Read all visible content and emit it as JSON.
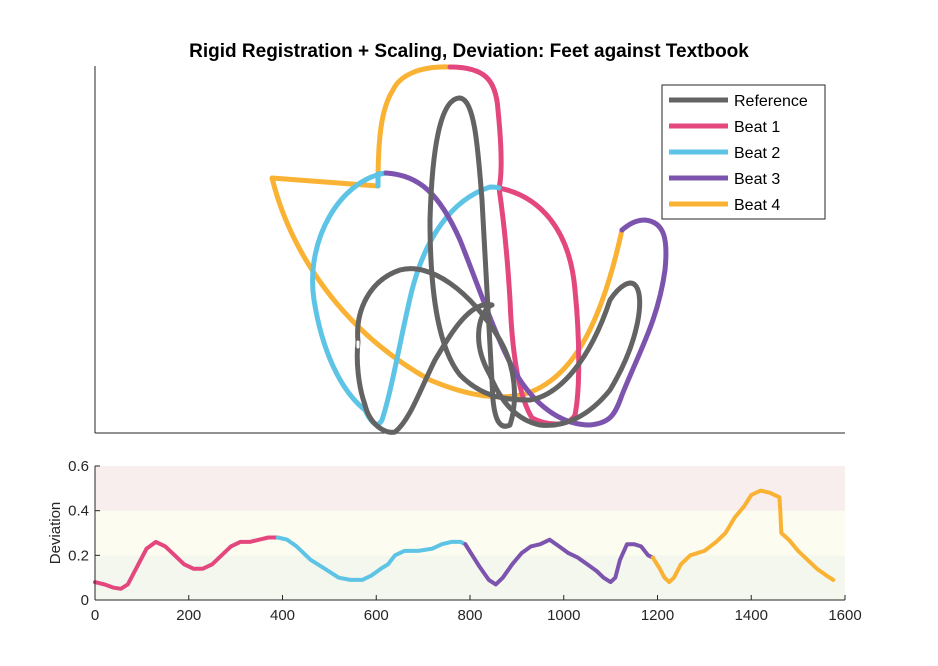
{
  "chart_data": [
    {
      "type": "line",
      "title": "Rigid Registration + Scaling, Deviation: Feet against Textbook",
      "legend_position": "top-right",
      "axes_visible": false,
      "series": [
        {
          "name": "Reference",
          "color": "#636363"
        },
        {
          "name": "Beat 1",
          "color": "#e4477e"
        },
        {
          "name": "Beat 2",
          "color": "#5ec4e6"
        },
        {
          "name": "Beat 3",
          "color": "#7d54ad"
        },
        {
          "name": "Beat 4",
          "color": "#f9b233"
        }
      ]
    },
    {
      "type": "line",
      "title": "",
      "xlabel": "",
      "ylabel": "Deviation",
      "xlim": [
        0,
        1600
      ],
      "ylim": [
        0,
        0.6
      ],
      "xticks": [
        "0",
        "200",
        "400",
        "600",
        "800",
        "1000",
        "1200",
        "1400",
        "1600"
      ],
      "yticks": [
        "0",
        "0.2",
        "0.4",
        "0.6"
      ],
      "bands": [
        {
          "from": 0,
          "to": 0.2,
          "color": "#f3f7ee"
        },
        {
          "from": 0.2,
          "to": 0.4,
          "color": "#fdfcf0"
        },
        {
          "from": 0.4,
          "to": 0.6,
          "color": "#f9eeee"
        }
      ],
      "series": [
        {
          "name": "Beat 1",
          "color": "#e4477e",
          "points": [
            [
              0,
              0.08
            ],
            [
              20,
              0.07
            ],
            [
              40,
              0.055
            ],
            [
              55,
              0.05
            ],
            [
              70,
              0.07
            ],
            [
              90,
              0.15
            ],
            [
              110,
              0.23
            ],
            [
              130,
              0.26
            ],
            [
              150,
              0.24
            ],
            [
              170,
              0.2
            ],
            [
              190,
              0.16
            ],
            [
              210,
              0.14
            ],
            [
              230,
              0.14
            ],
            [
              250,
              0.16
            ],
            [
              270,
              0.2
            ],
            [
              290,
              0.24
            ],
            [
              310,
              0.26
            ],
            [
              330,
              0.26
            ],
            [
              350,
              0.27
            ],
            [
              370,
              0.28
            ],
            [
              390,
              0.28
            ]
          ]
        },
        {
          "name": "Beat 2",
          "color": "#5ec4e6",
          "points": [
            [
              390,
              0.28
            ],
            [
              410,
              0.27
            ],
            [
              430,
              0.24
            ],
            [
              460,
              0.18
            ],
            [
              490,
              0.14
            ],
            [
              520,
              0.1
            ],
            [
              545,
              0.09
            ],
            [
              570,
              0.09
            ],
            [
              590,
              0.11
            ],
            [
              610,
              0.14
            ],
            [
              625,
              0.16
            ],
            [
              640,
              0.2
            ],
            [
              660,
              0.22
            ],
            [
              690,
              0.22
            ],
            [
              720,
              0.23
            ],
            [
              740,
              0.25
            ],
            [
              760,
              0.26
            ],
            [
              780,
              0.26
            ],
            [
              790,
              0.25
            ]
          ]
        },
        {
          "name": "Beat 3",
          "color": "#7d54ad",
          "points": [
            [
              790,
              0.25
            ],
            [
              805,
              0.2
            ],
            [
              820,
              0.15
            ],
            [
              840,
              0.09
            ],
            [
              855,
              0.07
            ],
            [
              870,
              0.1
            ],
            [
              890,
              0.16
            ],
            [
              910,
              0.21
            ],
            [
              930,
              0.24
            ],
            [
              950,
              0.25
            ],
            [
              970,
              0.27
            ],
            [
              990,
              0.24
            ],
            [
              1010,
              0.21
            ],
            [
              1030,
              0.19
            ],
            [
              1050,
              0.16
            ],
            [
              1070,
              0.13
            ],
            [
              1085,
              0.1
            ],
            [
              1100,
              0.08
            ],
            [
              1110,
              0.1
            ],
            [
              1120,
              0.18
            ],
            [
              1135,
              0.25
            ],
            [
              1150,
              0.25
            ],
            [
              1165,
              0.24
            ],
            [
              1180,
              0.2
            ],
            [
              1190,
              0.19
            ]
          ]
        },
        {
          "name": "Beat 4",
          "color": "#f9b233",
          "points": [
            [
              1190,
              0.19
            ],
            [
              1205,
              0.14
            ],
            [
              1215,
              0.1
            ],
            [
              1225,
              0.08
            ],
            [
              1235,
              0.1
            ],
            [
              1250,
              0.16
            ],
            [
              1270,
              0.2
            ],
            [
              1300,
              0.22
            ],
            [
              1325,
              0.26
            ],
            [
              1345,
              0.3
            ],
            [
              1365,
              0.37
            ],
            [
              1385,
              0.42
            ],
            [
              1400,
              0.47
            ],
            [
              1420,
              0.49
            ],
            [
              1440,
              0.48
            ],
            [
              1460,
              0.46
            ],
            [
              1462,
              0.4
            ],
            [
              1464,
              0.3
            ],
            [
              1480,
              0.27
            ],
            [
              1500,
              0.22
            ],
            [
              1520,
              0.18
            ],
            [
              1540,
              0.14
            ],
            [
              1560,
              0.11
            ],
            [
              1575,
              0.09
            ]
          ]
        }
      ]
    }
  ]
}
